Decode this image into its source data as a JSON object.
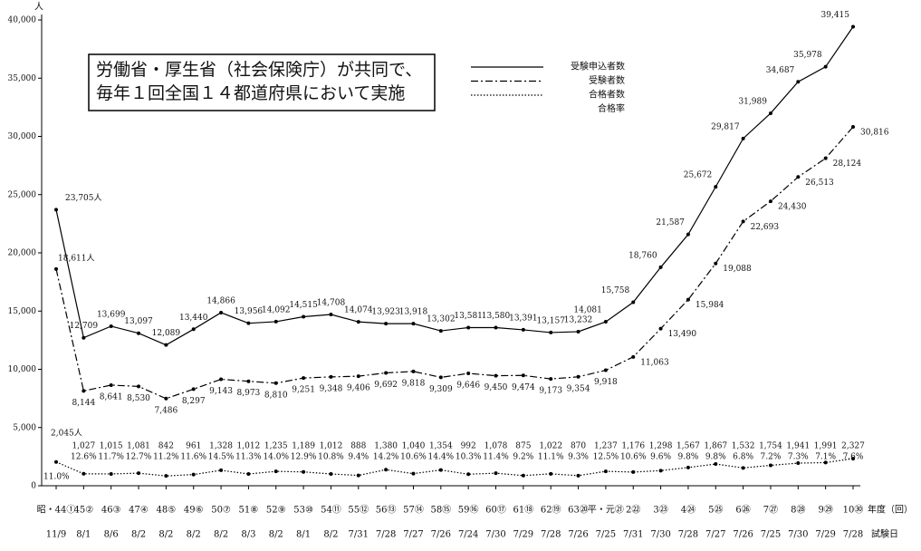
{
  "chart_data": {
    "type": "line",
    "annotation": [
      "労働省・厚生省（社会保険庁）が共同で、",
      "毎年１回全国１４都道府県において実施"
    ],
    "y_unit": "人",
    "x_label": "年度（回）",
    "date_label": "試験日",
    "categories": [
      "昭・44①",
      "45②",
      "46③",
      "47④",
      "48⑤",
      "49⑥",
      "50⑦",
      "51⑧",
      "52⑨",
      "53⑩",
      "54⑪",
      "55⑫",
      "56⑬",
      "57⑭",
      "58⑮",
      "59⑯",
      "60⑰",
      "61⑱",
      "62⑲",
      "63⑳",
      "平・元㉑",
      "2㉒",
      "3㉓",
      "4㉔",
      "5㉕",
      "6㉖",
      "7㉗",
      "8㉘",
      "9㉙",
      "10㉚"
    ],
    "dates": [
      "11/9",
      "8/1",
      "8/6",
      "8/2",
      "8/2",
      "8/2",
      "8/2",
      "8/3",
      "8/2",
      "8/1",
      "8/2",
      "7/31",
      "7/28",
      "7/27",
      "7/26",
      "7/24",
      "7/30",
      "7/29",
      "7/28",
      "7/26",
      "7/25",
      "7/31",
      "7/30",
      "7/28",
      "7/27",
      "7/26",
      "7/25",
      "7/30",
      "7/29",
      "7/28"
    ],
    "ylim": [
      0,
      40000
    ],
    "yticks": [
      0,
      {
        "value": 5000,
        "label": "5,000"
      },
      {
        "value": 10000,
        "label": "10,000"
      },
      {
        "value": 15000,
        "label": "15,000"
      },
      {
        "value": 20000,
        "label": "20,000"
      },
      {
        "value": 25000,
        "label": "25,000"
      },
      {
        "value": 30000,
        "label": "30,000"
      },
      {
        "value": 35000,
        "label": "35,000"
      },
      {
        "value": 40000,
        "label": "40,000"
      }
    ],
    "series": [
      {
        "name": "受験申込者数",
        "color": "#000000",
        "style": "solid",
        "values": [
          23705,
          12709,
          13699,
          13097,
          12089,
          13440,
          14866,
          13956,
          14092,
          14515,
          14708,
          14074,
          13923,
          13918,
          13302,
          13581,
          13580,
          13391,
          13157,
          13232,
          14081,
          15758,
          18760,
          21587,
          25672,
          29817,
          31989,
          34687,
          35978,
          39415
        ],
        "value_labels": [
          "23,705人",
          "12,709",
          "13,699",
          "13,097",
          "12,089",
          "13,440",
          "14,866",
          "13,956",
          "14,092",
          "14,515",
          "14,708",
          "14,074",
          "13,923",
          "13,918",
          "13,302",
          "13,581",
          "13,580",
          "13,391",
          "13,157",
          "13,232",
          "14,081",
          "15,758",
          "18,760",
          "21,587",
          "25,672",
          "29,817",
          "31,989",
          "34,687",
          "35,978",
          "39,415"
        ]
      },
      {
        "name": "受験者数",
        "color": "#000000",
        "style": "dashdot",
        "values": [
          18611,
          8144,
          8641,
          8530,
          7486,
          8297,
          9143,
          8973,
          8810,
          9251,
          9348,
          9406,
          9692,
          9818,
          9309,
          9646,
          9450,
          9474,
          9173,
          9354,
          9918,
          11063,
          13490,
          15984,
          19088,
          22693,
          24430,
          26513,
          28124,
          30816
        ],
        "value_labels": [
          "18,611人",
          "8,144",
          "8,641",
          "8,530",
          "7,486",
          "8,297",
          "9,143",
          "8,973",
          "8,810",
          "9,251",
          "9,348",
          "9,406",
          "9,692",
          "9,818",
          "9,309",
          "9,646",
          "9,450",
          "9,474",
          "9,173",
          "9,354",
          "9,918",
          "11,063",
          "13,490",
          "15,984",
          "19,088",
          "22,693",
          "24,430",
          "26,513",
          "28,124",
          "30,816"
        ]
      },
      {
        "name": "合格者数",
        "color": "#000000",
        "style": "dotted",
        "values": [
          2045,
          1027,
          1015,
          1081,
          842,
          961,
          1328,
          1012,
          1235,
          1189,
          1012,
          888,
          1380,
          1040,
          1354,
          992,
          1078,
          875,
          1022,
          870,
          1237,
          1176,
          1298,
          1567,
          1867,
          1532,
          1754,
          1941,
          1991,
          2327
        ],
        "value_labels": [
          "2,045人",
          "1,027",
          "1,015",
          "1,081",
          "842",
          "961",
          "1,328",
          "1,012",
          "1,235",
          "1,189",
          "1,012",
          "888",
          "1,380",
          "1,040",
          "1,354",
          "992",
          "1,078",
          "875",
          "1,022",
          "870",
          "1,237",
          "1,176",
          "1,298",
          "1,567",
          "1,867",
          "1,532",
          "1,754",
          "1,941",
          "1,991",
          "2,327"
        ]
      },
      {
        "name": "合格率",
        "color": "#000000",
        "style": "none",
        "values": [
          11.0,
          12.6,
          11.7,
          12.7,
          11.2,
          11.6,
          14.5,
          11.3,
          14.0,
          12.9,
          10.8,
          9.4,
          14.2,
          10.6,
          14.4,
          10.3,
          11.4,
          9.2,
          11.1,
          9.3,
          12.5,
          10.6,
          9.6,
          9.8,
          9.8,
          6.8,
          7.2,
          7.3,
          7.1,
          7.6
        ],
        "value_labels": [
          "11.0%",
          "12.6%",
          "11.7%",
          "12.7%",
          "11.2%",
          "11.6%",
          "14.5%",
          "11.3%",
          "14.0%",
          "12.9%",
          "10.8%",
          "9.4%",
          "14.2%",
          "10.6%",
          "14.4%",
          "10.3%",
          "11.4%",
          "9.2%",
          "11.1%",
          "9.3%",
          "12.5%",
          "10.6%",
          "9.6%",
          "9.8%",
          "9.8%",
          "6.8%",
          "7.2%",
          "7.3%",
          "7.1%",
          "7.6%"
        ]
      }
    ]
  }
}
